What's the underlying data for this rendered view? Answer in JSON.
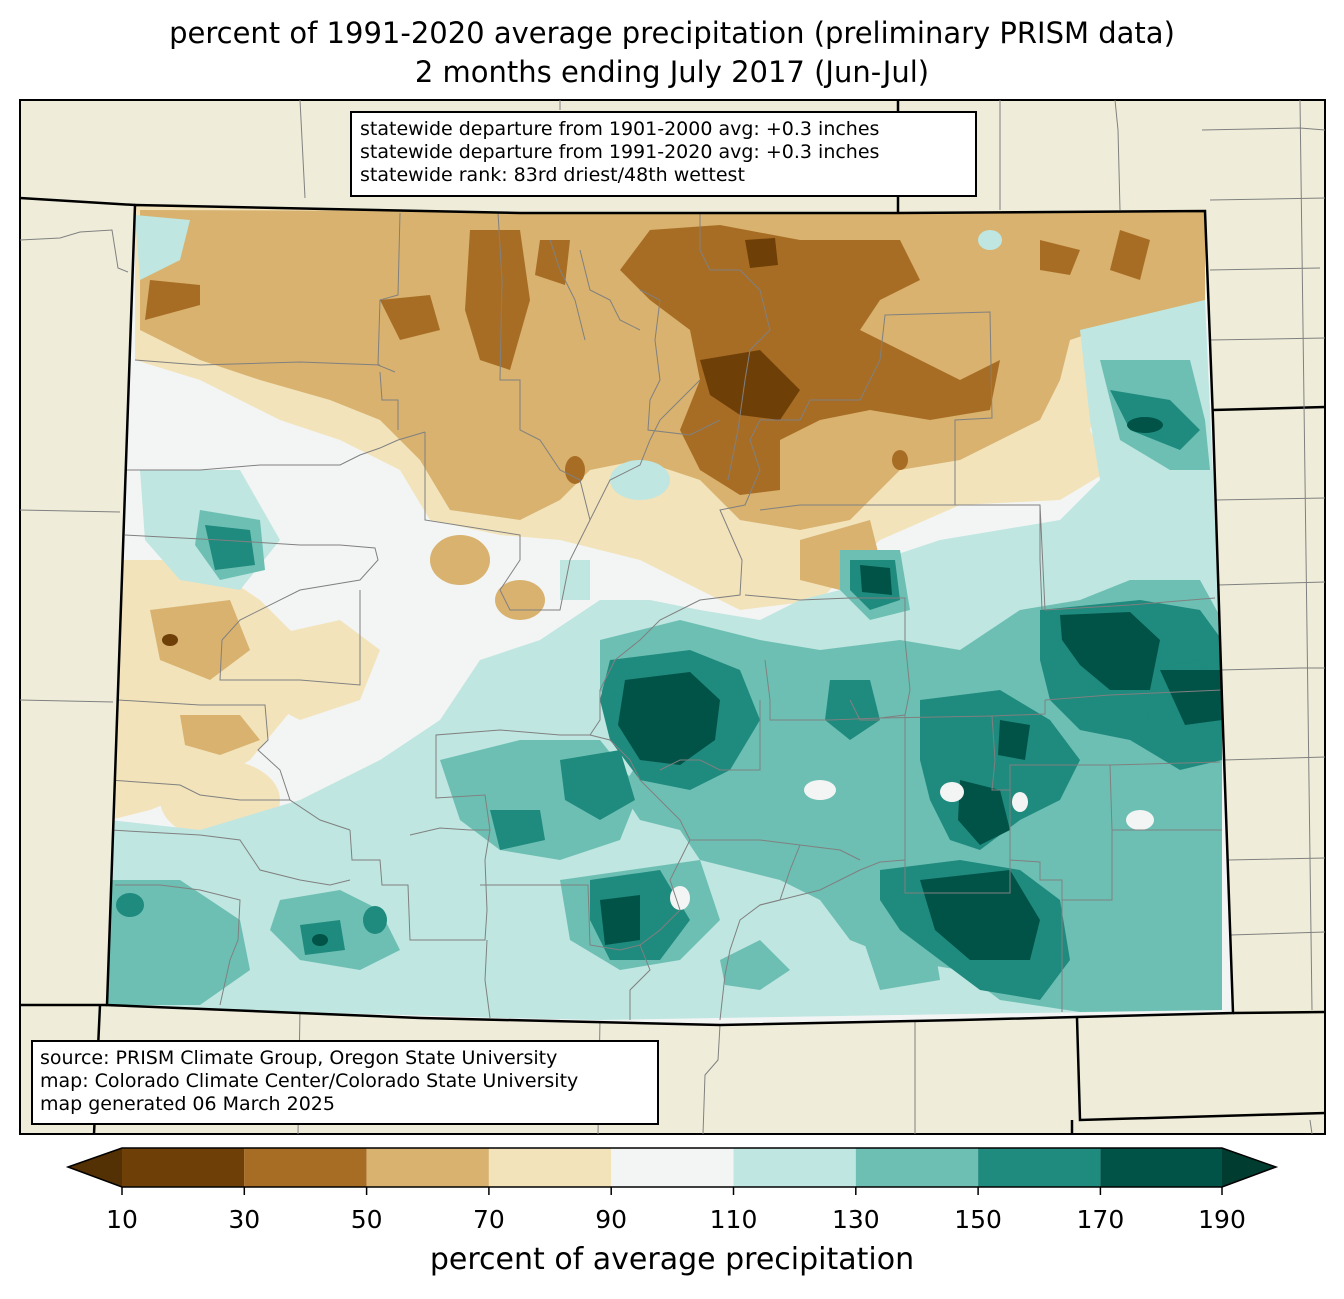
{
  "title": {
    "line1": "percent of 1991-2020 average precipitation (preliminary PRISM data)",
    "line2": "2 months ending July 2017 (Jun-Jul)"
  },
  "stats": {
    "line1": "statewide departure from 1901-2000 avg: +0.3 inches",
    "line2": "statewide departure from 1991-2020 avg: +0.3 inches",
    "line3": "statewide rank: 83rd driest/48th wettest"
  },
  "source": {
    "line1": "source: PRISM Climate Group, Oregon State University",
    "line2": "map: Colorado Climate Center/Colorado State University",
    "line3": "map generated 06 March 2025"
  },
  "colorbar": {
    "label": "percent of average precipitation",
    "ticks": [
      "10",
      "30",
      "50",
      "70",
      "90",
      "110",
      "130",
      "150",
      "170",
      "190"
    ],
    "colors": {
      "under": "#543005",
      "bins": [
        "#6f3f08",
        "#a86d24",
        "#d8b26e",
        "#f2e3bb",
        "#f3f5f4",
        "#bfe6e0",
        "#6dbfb3",
        "#1f8a7e",
        "#005346"
      ],
      "over": "#003c30"
    }
  },
  "colors": {
    "land_background": "#efedd9",
    "state_border": "#000000",
    "county_lines": "#808080"
  }
}
